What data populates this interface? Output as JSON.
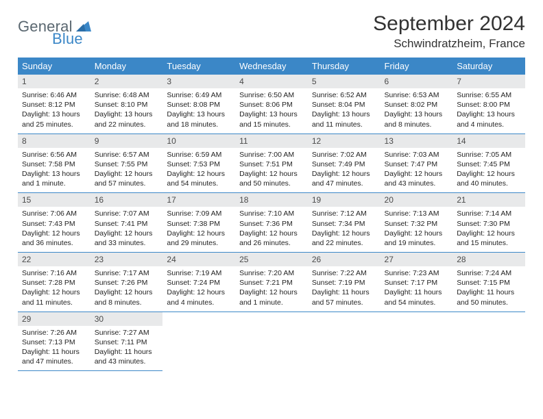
{
  "brand": {
    "name_part1": "General",
    "name_part2": "Blue"
  },
  "header": {
    "month_title": "September 2024",
    "location": "Schwindratzheim, France"
  },
  "colors": {
    "accent": "#3b87c7",
    "daynum_bg": "#e8e9ea",
    "text": "#323232",
    "logo_gray": "#5a6770"
  },
  "weekdays": [
    "Sunday",
    "Monday",
    "Tuesday",
    "Wednesday",
    "Thursday",
    "Friday",
    "Saturday"
  ],
  "grid": [
    [
      {
        "n": "1",
        "sunrise": "Sunrise: 6:46 AM",
        "sunset": "Sunset: 8:12 PM",
        "daylight": "Daylight: 13 hours and 25 minutes."
      },
      {
        "n": "2",
        "sunrise": "Sunrise: 6:48 AM",
        "sunset": "Sunset: 8:10 PM",
        "daylight": "Daylight: 13 hours and 22 minutes."
      },
      {
        "n": "3",
        "sunrise": "Sunrise: 6:49 AM",
        "sunset": "Sunset: 8:08 PM",
        "daylight": "Daylight: 13 hours and 18 minutes."
      },
      {
        "n": "4",
        "sunrise": "Sunrise: 6:50 AM",
        "sunset": "Sunset: 8:06 PM",
        "daylight": "Daylight: 13 hours and 15 minutes."
      },
      {
        "n": "5",
        "sunrise": "Sunrise: 6:52 AM",
        "sunset": "Sunset: 8:04 PM",
        "daylight": "Daylight: 13 hours and 11 minutes."
      },
      {
        "n": "6",
        "sunrise": "Sunrise: 6:53 AM",
        "sunset": "Sunset: 8:02 PM",
        "daylight": "Daylight: 13 hours and 8 minutes."
      },
      {
        "n": "7",
        "sunrise": "Sunrise: 6:55 AM",
        "sunset": "Sunset: 8:00 PM",
        "daylight": "Daylight: 13 hours and 4 minutes."
      }
    ],
    [
      {
        "n": "8",
        "sunrise": "Sunrise: 6:56 AM",
        "sunset": "Sunset: 7:58 PM",
        "daylight": "Daylight: 13 hours and 1 minute."
      },
      {
        "n": "9",
        "sunrise": "Sunrise: 6:57 AM",
        "sunset": "Sunset: 7:55 PM",
        "daylight": "Daylight: 12 hours and 57 minutes."
      },
      {
        "n": "10",
        "sunrise": "Sunrise: 6:59 AM",
        "sunset": "Sunset: 7:53 PM",
        "daylight": "Daylight: 12 hours and 54 minutes."
      },
      {
        "n": "11",
        "sunrise": "Sunrise: 7:00 AM",
        "sunset": "Sunset: 7:51 PM",
        "daylight": "Daylight: 12 hours and 50 minutes."
      },
      {
        "n": "12",
        "sunrise": "Sunrise: 7:02 AM",
        "sunset": "Sunset: 7:49 PM",
        "daylight": "Daylight: 12 hours and 47 minutes."
      },
      {
        "n": "13",
        "sunrise": "Sunrise: 7:03 AM",
        "sunset": "Sunset: 7:47 PM",
        "daylight": "Daylight: 12 hours and 43 minutes."
      },
      {
        "n": "14",
        "sunrise": "Sunrise: 7:05 AM",
        "sunset": "Sunset: 7:45 PM",
        "daylight": "Daylight: 12 hours and 40 minutes."
      }
    ],
    [
      {
        "n": "15",
        "sunrise": "Sunrise: 7:06 AM",
        "sunset": "Sunset: 7:43 PM",
        "daylight": "Daylight: 12 hours and 36 minutes."
      },
      {
        "n": "16",
        "sunrise": "Sunrise: 7:07 AM",
        "sunset": "Sunset: 7:41 PM",
        "daylight": "Daylight: 12 hours and 33 minutes."
      },
      {
        "n": "17",
        "sunrise": "Sunrise: 7:09 AM",
        "sunset": "Sunset: 7:38 PM",
        "daylight": "Daylight: 12 hours and 29 minutes."
      },
      {
        "n": "18",
        "sunrise": "Sunrise: 7:10 AM",
        "sunset": "Sunset: 7:36 PM",
        "daylight": "Daylight: 12 hours and 26 minutes."
      },
      {
        "n": "19",
        "sunrise": "Sunrise: 7:12 AM",
        "sunset": "Sunset: 7:34 PM",
        "daylight": "Daylight: 12 hours and 22 minutes."
      },
      {
        "n": "20",
        "sunrise": "Sunrise: 7:13 AM",
        "sunset": "Sunset: 7:32 PM",
        "daylight": "Daylight: 12 hours and 19 minutes."
      },
      {
        "n": "21",
        "sunrise": "Sunrise: 7:14 AM",
        "sunset": "Sunset: 7:30 PM",
        "daylight": "Daylight: 12 hours and 15 minutes."
      }
    ],
    [
      {
        "n": "22",
        "sunrise": "Sunrise: 7:16 AM",
        "sunset": "Sunset: 7:28 PM",
        "daylight": "Daylight: 12 hours and 11 minutes."
      },
      {
        "n": "23",
        "sunrise": "Sunrise: 7:17 AM",
        "sunset": "Sunset: 7:26 PM",
        "daylight": "Daylight: 12 hours and 8 minutes."
      },
      {
        "n": "24",
        "sunrise": "Sunrise: 7:19 AM",
        "sunset": "Sunset: 7:24 PM",
        "daylight": "Daylight: 12 hours and 4 minutes."
      },
      {
        "n": "25",
        "sunrise": "Sunrise: 7:20 AM",
        "sunset": "Sunset: 7:21 PM",
        "daylight": "Daylight: 12 hours and 1 minute."
      },
      {
        "n": "26",
        "sunrise": "Sunrise: 7:22 AM",
        "sunset": "Sunset: 7:19 PM",
        "daylight": "Daylight: 11 hours and 57 minutes."
      },
      {
        "n": "27",
        "sunrise": "Sunrise: 7:23 AM",
        "sunset": "Sunset: 7:17 PM",
        "daylight": "Daylight: 11 hours and 54 minutes."
      },
      {
        "n": "28",
        "sunrise": "Sunrise: 7:24 AM",
        "sunset": "Sunset: 7:15 PM",
        "daylight": "Daylight: 11 hours and 50 minutes."
      }
    ],
    [
      {
        "n": "29",
        "sunrise": "Sunrise: 7:26 AM",
        "sunset": "Sunset: 7:13 PM",
        "daylight": "Daylight: 11 hours and 47 minutes."
      },
      {
        "n": "30",
        "sunrise": "Sunrise: 7:27 AM",
        "sunset": "Sunset: 7:11 PM",
        "daylight": "Daylight: 11 hours and 43 minutes."
      },
      null,
      null,
      null,
      null,
      null
    ]
  ]
}
